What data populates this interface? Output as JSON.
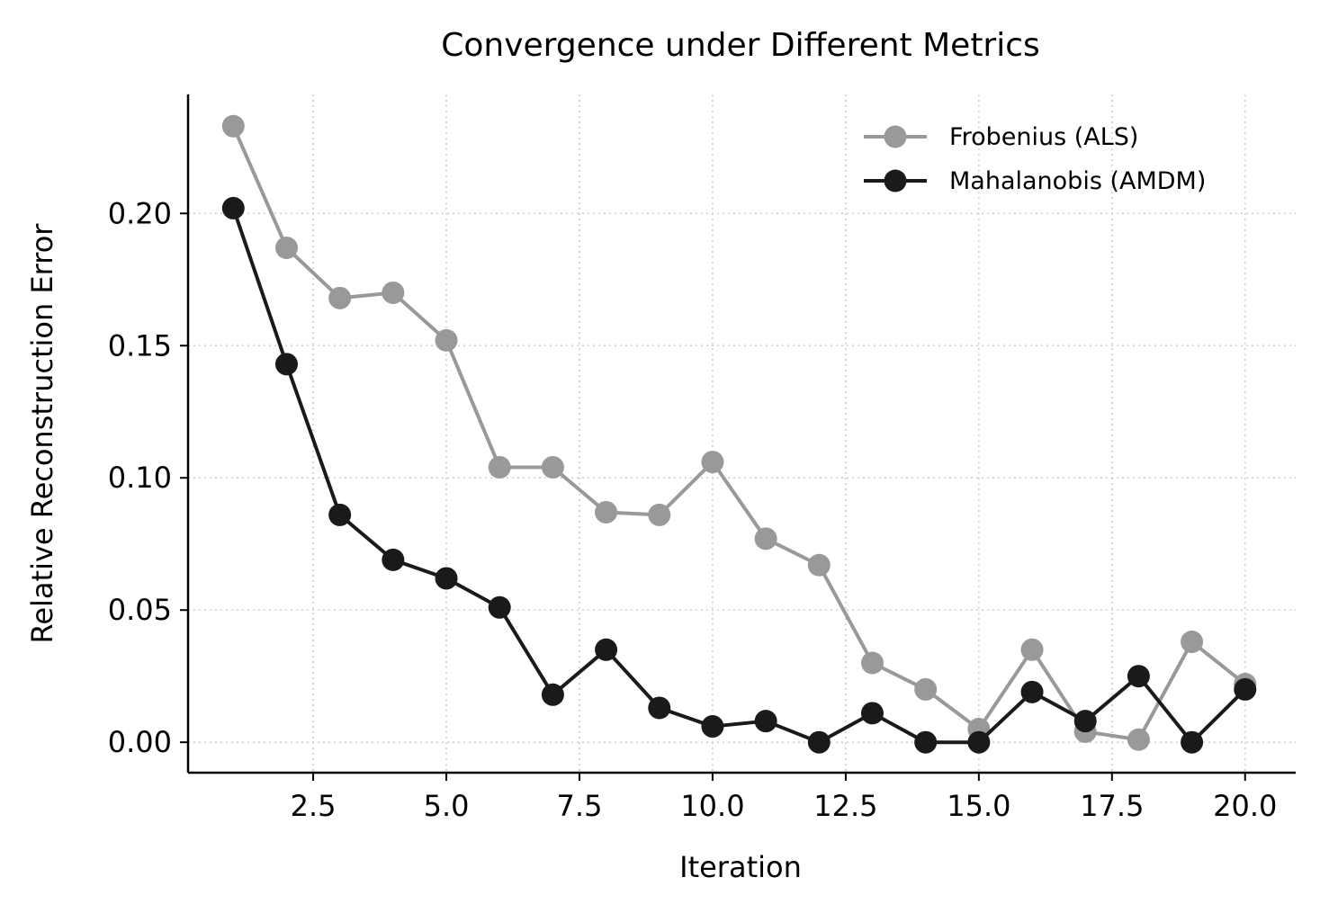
{
  "chart_data": {
    "type": "line",
    "title": "Convergence under Different Metrics",
    "xlabel": "Iteration",
    "ylabel": "Relative Reconstruction Error",
    "xlim": [
      0.15,
      20.95
    ],
    "ylim": [
      -0.0115,
      0.245
    ],
    "xticks": [
      2.5,
      5.0,
      7.5,
      10.0,
      12.5,
      15.0,
      17.5,
      20.0
    ],
    "xtick_labels": [
      "2.5",
      "5.0",
      "7.5",
      "10.0",
      "12.5",
      "15.0",
      "17.5",
      "20.0"
    ],
    "yticks": [
      0.0,
      0.05,
      0.1,
      0.15,
      0.2
    ],
    "ytick_labels": [
      "0.00",
      "0.05",
      "0.10",
      "0.15",
      "0.20"
    ],
    "grid": true,
    "legend_position": "upper right",
    "x": [
      1,
      2,
      3,
      4,
      5,
      6,
      7,
      8,
      9,
      10,
      11,
      12,
      13,
      14,
      15,
      16,
      17,
      18,
      19,
      20
    ],
    "series": [
      {
        "name": "Frobenius (ALS)",
        "color": "#999999",
        "values": [
          0.233,
          0.187,
          0.168,
          0.17,
          0.152,
          0.104,
          0.104,
          0.087,
          0.086,
          0.106,
          0.077,
          0.067,
          0.03,
          0.02,
          0.005,
          0.035,
          0.004,
          0.001,
          0.038,
          0.022
        ]
      },
      {
        "name": "Mahalanobis (AMDM)",
        "color": "#1a1a1a",
        "values": [
          0.202,
          0.143,
          0.086,
          0.069,
          0.062,
          0.051,
          0.018,
          0.035,
          0.013,
          0.006,
          0.008,
          0.0,
          0.011,
          0.0,
          0.0,
          0.019,
          0.008,
          0.025,
          0.0,
          0.02
        ]
      }
    ]
  }
}
